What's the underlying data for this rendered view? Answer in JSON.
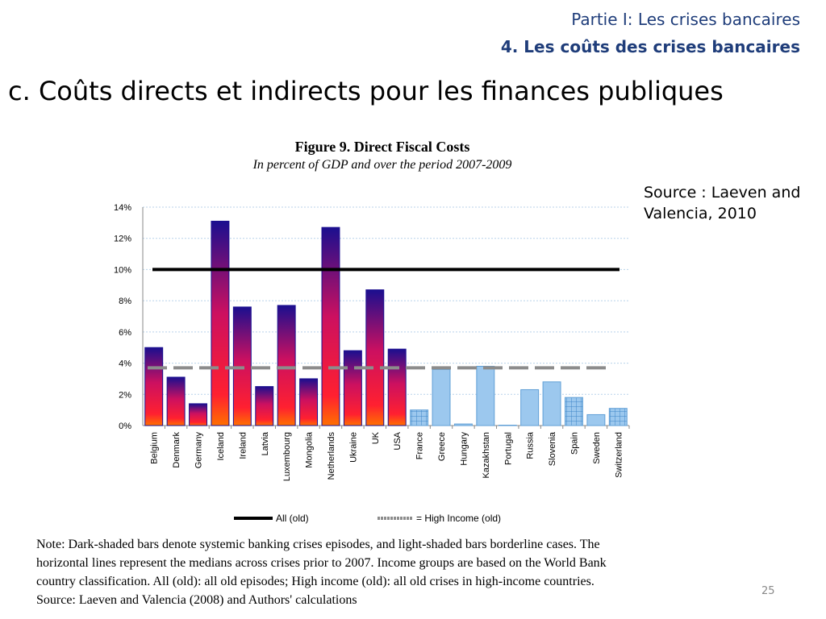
{
  "header": {
    "section": "Partie I: Les crises bancaires",
    "subsection": "4. Les coûts des crises bancaires"
  },
  "slide": {
    "title": "c.   Coûts directs et indirects pour les finances publiques",
    "source": "Source : Laeven and Valencia, 2010",
    "page_number": "25"
  },
  "note": {
    "lines": [
      "Note: Dark-shaded bars denote systemic banking crises episodes, and light-shaded bars borderline cases. The",
      "horizontal lines represent the medians across crises prior to 2007. Income groups are based on the World Bank",
      "country classification. All (old): all old episodes; High income (old): all old crises in high-income countries.",
      "Source: Laeven and Valencia (2008) and Authors' calculations"
    ]
  },
  "chart_data": {
    "type": "bar",
    "title": "Figure 9. Direct Fiscal Costs",
    "subtitle": "In percent of GDP and over the period 2007-2009",
    "categories": [
      "Belgium",
      "Denmark",
      "Germany",
      "Iceland",
      "Ireland",
      "Latvia",
      "Luxembourg",
      "Mongolia",
      "Netherlands",
      "Ukraine",
      "UK",
      "USA",
      "France",
      "Greece",
      "Hungary",
      "Kazakhstan",
      "Portugal",
      "Russia",
      "Slovenia",
      "Spain",
      "Sweden",
      "Switzerland"
    ],
    "values": [
      5.0,
      3.1,
      1.4,
      13.1,
      7.6,
      2.5,
      7.7,
      3.0,
      12.7,
      4.8,
      8.7,
      4.9,
      1.0,
      3.6,
      0.1,
      3.8,
      0.0,
      2.3,
      2.8,
      1.8,
      0.7,
      1.1
    ],
    "crisis_type": [
      "systemic",
      "systemic",
      "systemic",
      "systemic",
      "systemic",
      "systemic",
      "systemic",
      "systemic",
      "systemic",
      "systemic",
      "systemic",
      "systemic",
      "borderline",
      "borderline",
      "borderline",
      "borderline",
      "borderline",
      "borderline",
      "borderline",
      "borderline",
      "borderline",
      "borderline"
    ],
    "patterned": [
      "France",
      "Spain",
      "Switzerland"
    ],
    "ylim": [
      0,
      14
    ],
    "y_ticks": [
      0,
      2,
      4,
      6,
      8,
      10,
      12,
      14
    ],
    "y_tick_labels": [
      "0%",
      "2%",
      "4%",
      "6%",
      "8%",
      "10%",
      "12%",
      "14%"
    ],
    "grid": true,
    "reference_lines": [
      {
        "name": "All (old)",
        "value": 10,
        "style": "solid",
        "color": "#000000"
      },
      {
        "name": "High Income (old)",
        "value": 3.7,
        "style": "dashed",
        "color": "#8c8c8c"
      }
    ],
    "legend_position": "bottom",
    "colors": {
      "systemic_top": "#1b0f8f",
      "systemic_mid": "#cc1060",
      "systemic_bottom": "#ff7000",
      "borderline": "#9cc8ee",
      "borderline_edge": "#5f9fd6"
    }
  }
}
